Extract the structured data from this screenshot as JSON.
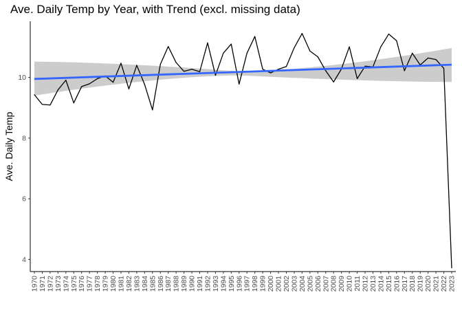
{
  "chart_data": {
    "type": "line",
    "title": "Ave. Daily Temp by Year, with Trend (excl. missing data)",
    "xlabel": "",
    "ylabel": "Ave. Daily Temp",
    "x": [
      1970,
      1971,
      1972,
      1973,
      1974,
      1975,
      1976,
      1977,
      1978,
      1979,
      1980,
      1981,
      1982,
      1983,
      1984,
      1985,
      1986,
      1987,
      1988,
      1989,
      1990,
      1991,
      1992,
      1993,
      1994,
      1995,
      1996,
      1997,
      1998,
      1999,
      2000,
      2001,
      2002,
      2003,
      2004,
      2005,
      2006,
      2007,
      2008,
      2009,
      2010,
      2011,
      2012,
      2013,
      2014,
      2015,
      2016,
      2017,
      2018,
      2019,
      2020,
      2021,
      2022,
      2023
    ],
    "y_ticks": [
      4,
      6,
      8,
      10
    ],
    "ylim": [
      3.6,
      11.85
    ],
    "grid": false,
    "series": [
      {
        "color": "#000000",
        "values": [
          9.43,
          9.11,
          9.09,
          9.59,
          9.91,
          9.16,
          9.7,
          9.79,
          9.96,
          10.05,
          9.84,
          10.47,
          9.62,
          10.4,
          9.77,
          8.93,
          10.43,
          11.02,
          10.49,
          10.2,
          10.27,
          10.19,
          11.14,
          10.07,
          10.8,
          11.1,
          9.78,
          10.8,
          11.35,
          10.27,
          10.15,
          10.27,
          10.36,
          10.98,
          11.45,
          10.87,
          10.68,
          10.22,
          9.85,
          10.28,
          11.01,
          9.96,
          10.37,
          10.35,
          11.01,
          11.43,
          11.21,
          10.22,
          10.8,
          10.41,
          10.64,
          10.59,
          10.3,
          3.72
        ]
      }
    ],
    "trend": {
      "color": "#3366ff",
      "start": [
        1970,
        9.95
      ],
      "end": [
        2023,
        10.42
      ]
    },
    "confidence_band": {
      "color": "#cccccc",
      "upper_start": 10.52,
      "upper_mid": 10.2,
      "upper_end": 10.97,
      "lower_start": 9.4,
      "lower_mid": 10.07,
      "lower_end": 9.85,
      "mid_x": 1996
    }
  }
}
